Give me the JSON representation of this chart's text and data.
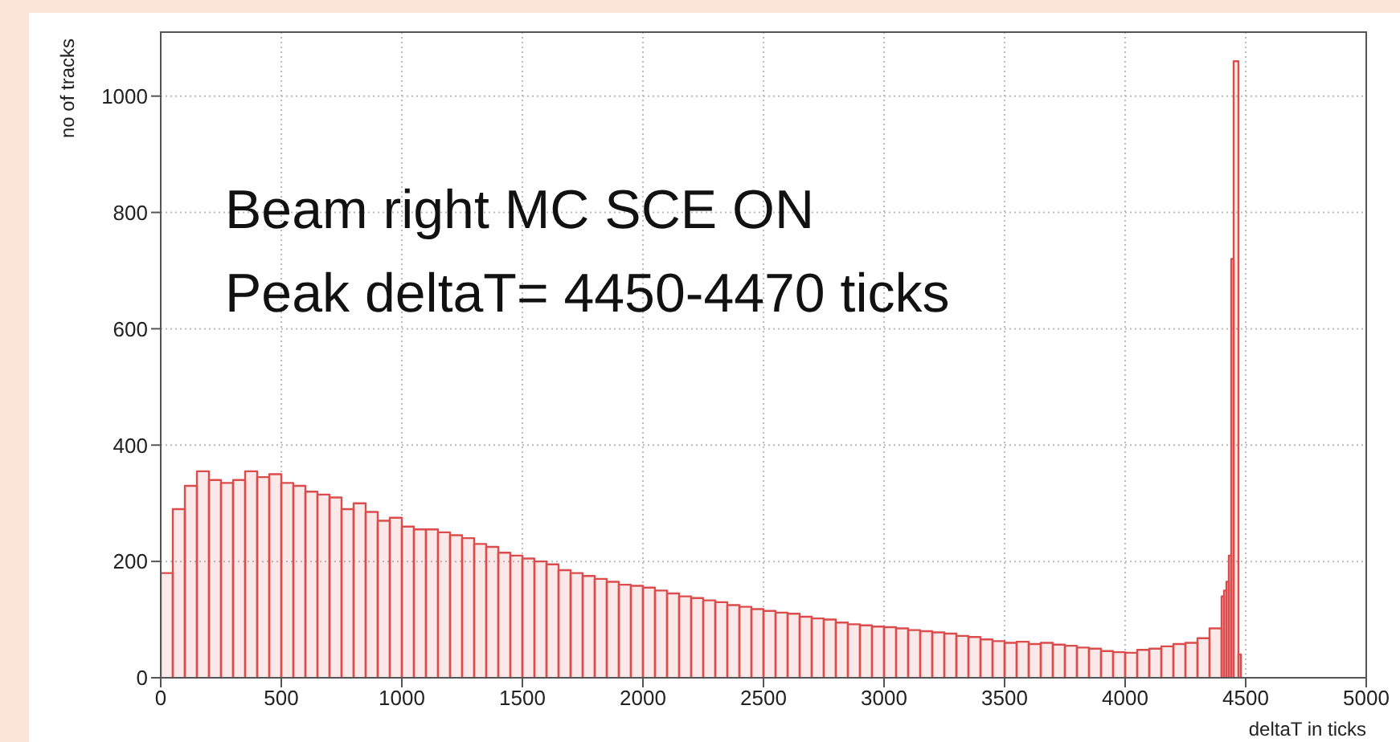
{
  "chart_data": {
    "type": "histogram",
    "xlabel": "deltaT in ticks",
    "ylabel": "no of tracks",
    "annotations": [
      "Beam right MC SCE ON",
      "Peak deltaT= 4450-4470 ticks"
    ],
    "bins": [
      0,
      50,
      100,
      150,
      200,
      250,
      300,
      350,
      400,
      450,
      500,
      550,
      600,
      650,
      700,
      750,
      800,
      850,
      900,
      950,
      1000,
      1050,
      1100,
      1150,
      1200,
      1250,
      1300,
      1350,
      1400,
      1450,
      1500,
      1550,
      1600,
      1650,
      1700,
      1750,
      1800,
      1850,
      1900,
      1950,
      2000,
      2050,
      2100,
      2150,
      2200,
      2250,
      2300,
      2350,
      2400,
      2450,
      2500,
      2550,
      2600,
      2650,
      2700,
      2750,
      2800,
      2850,
      2900,
      2950,
      3000,
      3050,
      3100,
      3150,
      3200,
      3250,
      3300,
      3350,
      3400,
      3450,
      3500,
      3550,
      3600,
      3650,
      3700,
      3750,
      3800,
      3850,
      3900,
      3950,
      4000,
      4050,
      4100,
      4150,
      4200,
      4250,
      4300,
      4350,
      4400,
      4410,
      4420,
      4430,
      4440,
      4450,
      4470,
      4480
    ],
    "values": [
      180,
      290,
      330,
      355,
      340,
      335,
      340,
      355,
      345,
      350,
      335,
      330,
      320,
      315,
      310,
      290,
      300,
      285,
      270,
      275,
      260,
      255,
      255,
      250,
      245,
      240,
      230,
      225,
      215,
      210,
      205,
      200,
      195,
      185,
      180,
      175,
      170,
      165,
      160,
      158,
      155,
      150,
      145,
      140,
      137,
      133,
      130,
      125,
      122,
      118,
      115,
      112,
      110,
      105,
      102,
      100,
      95,
      92,
      90,
      88,
      87,
      85,
      82,
      80,
      78,
      76,
      72,
      70,
      66,
      63,
      60,
      62,
      58,
      60,
      57,
      55,
      52,
      50,
      46,
      44,
      43,
      48,
      50,
      54,
      58,
      60,
      68,
      85,
      140,
      150,
      165,
      210,
      720,
      1060,
      40
    ],
    "color": "#dc4c4c",
    "xlim": [
      0,
      5000
    ],
    "xticks": [
      0,
      500,
      1000,
      1500,
      2000,
      2500,
      3000,
      3500,
      4000,
      4500,
      5000
    ],
    "ylim": [
      0,
      1110
    ],
    "yticks": [
      0,
      200,
      400,
      600,
      800,
      1000
    ],
    "grid": true
  }
}
